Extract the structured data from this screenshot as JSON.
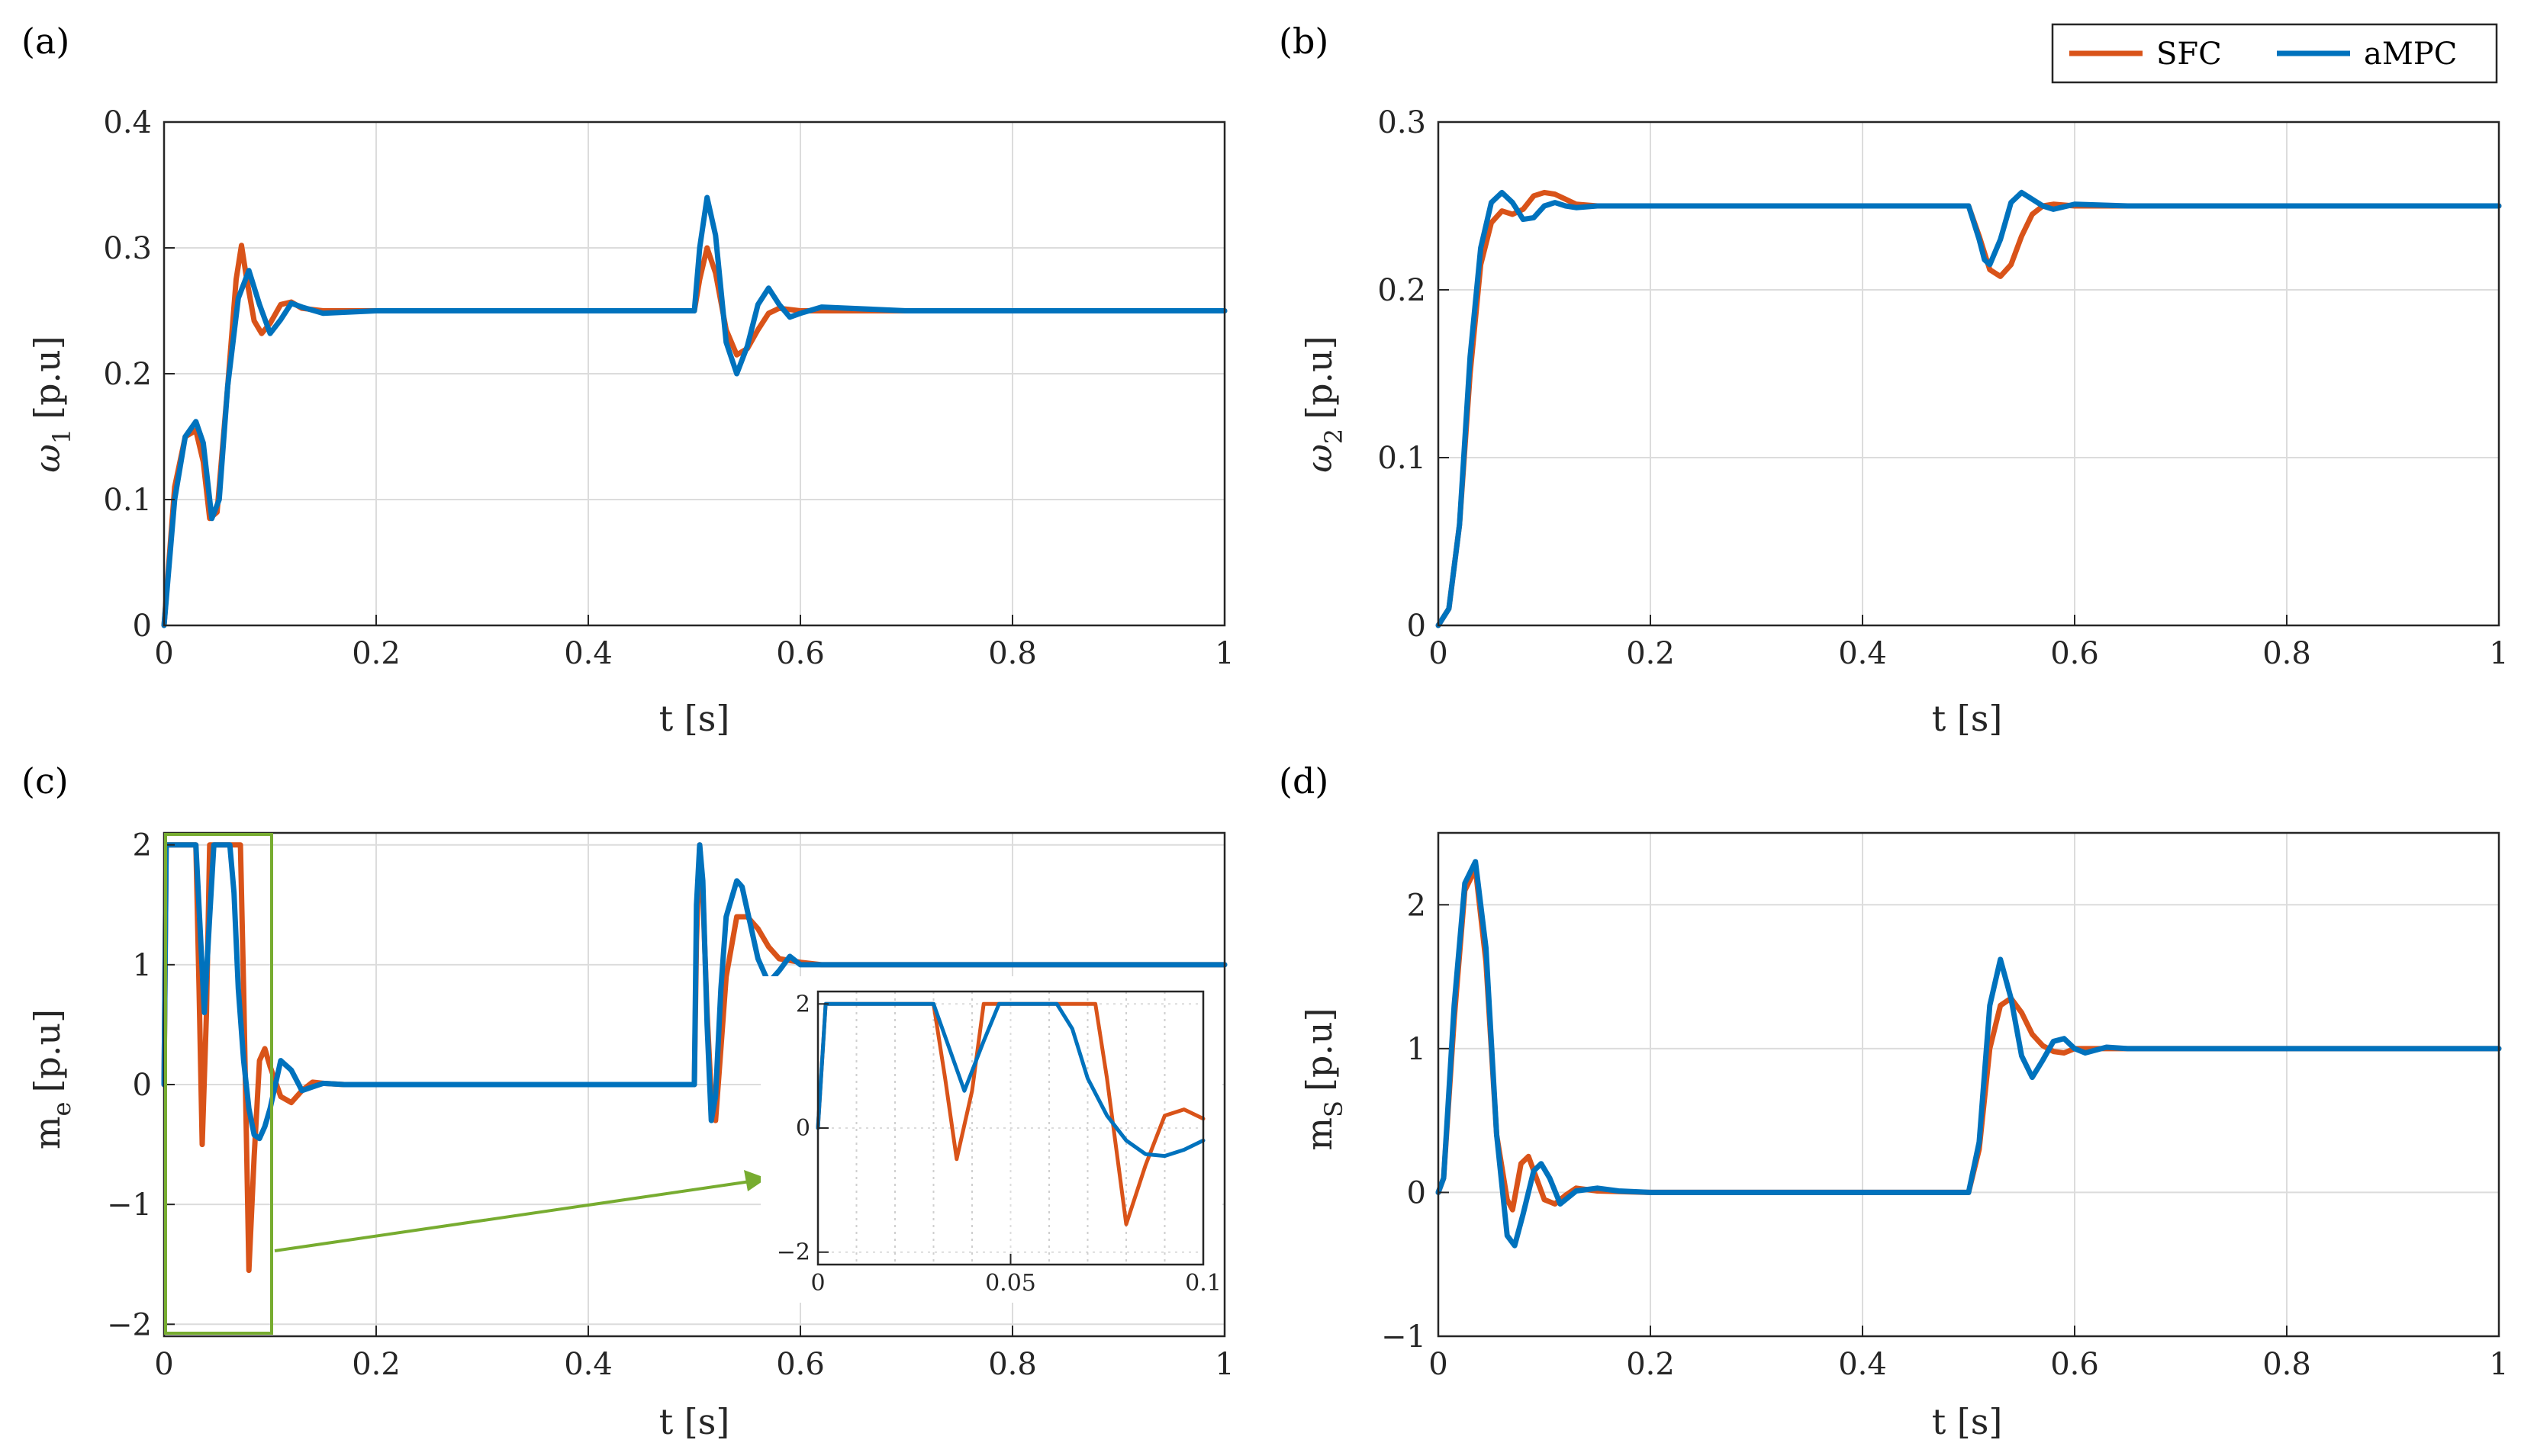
{
  "colors": {
    "sfc": "#D95319",
    "ampc": "#0072BD",
    "grid": "#dcdcdc",
    "axis": "#262626",
    "zoom": "#77AC30"
  },
  "legend": {
    "sfc_label": "SFC",
    "ampc_label": "aMPC"
  },
  "chart_data": [
    {
      "id": "a",
      "type": "line",
      "panel_label": "(a)",
      "ylabel_main": "ω",
      "ylabel_sub": "1",
      "ylabel_unit": "[p.u]",
      "xlabel": "t [s]",
      "xlim": [
        0,
        1
      ],
      "ylim": [
        0,
        0.4
      ],
      "xticks": [
        0,
        0.2,
        0.4,
        0.6,
        0.8,
        1
      ],
      "xtick_labels": [
        "0",
        "0.2",
        "0.4",
        "0.6",
        "0.8",
        "1"
      ],
      "yticks": [
        0,
        0.1,
        0.2,
        0.3,
        0.4
      ],
      "ytick_labels": [
        "0",
        "0.1",
        "0.2",
        "0.3",
        "0.4"
      ],
      "series": [
        {
          "name": "SFC",
          "x": [
            0,
            0.01,
            0.02,
            0.03,
            0.037,
            0.043,
            0.05,
            0.06,
            0.068,
            0.073,
            0.078,
            0.085,
            0.092,
            0.1,
            0.11,
            0.12,
            0.13,
            0.15,
            0.2,
            0.5,
            0.505,
            0.512,
            0.52,
            0.53,
            0.54,
            0.55,
            0.56,
            0.57,
            0.58,
            0.6,
            0.62,
            0.7,
            1.0
          ],
          "y": [
            0,
            0.11,
            0.15,
            0.155,
            0.13,
            0.085,
            0.09,
            0.19,
            0.275,
            0.302,
            0.275,
            0.242,
            0.232,
            0.24,
            0.255,
            0.257,
            0.252,
            0.25,
            0.25,
            0.25,
            0.275,
            0.3,
            0.28,
            0.235,
            0.215,
            0.22,
            0.235,
            0.248,
            0.252,
            0.25,
            0.25,
            0.25,
            0.25
          ]
        },
        {
          "name": "aMPC",
          "x": [
            0,
            0.01,
            0.02,
            0.03,
            0.037,
            0.045,
            0.052,
            0.06,
            0.07,
            0.08,
            0.09,
            0.1,
            0.11,
            0.12,
            0.13,
            0.15,
            0.2,
            0.5,
            0.505,
            0.512,
            0.52,
            0.53,
            0.54,
            0.55,
            0.56,
            0.57,
            0.58,
            0.59,
            0.6,
            0.62,
            0.7,
            1.0
          ],
          "y": [
            0,
            0.1,
            0.15,
            0.162,
            0.145,
            0.085,
            0.1,
            0.19,
            0.26,
            0.282,
            0.255,
            0.232,
            0.243,
            0.256,
            0.253,
            0.248,
            0.25,
            0.25,
            0.3,
            0.34,
            0.31,
            0.225,
            0.2,
            0.222,
            0.255,
            0.268,
            0.255,
            0.245,
            0.248,
            0.253,
            0.25,
            0.25
          ]
        }
      ]
    },
    {
      "id": "b",
      "type": "line",
      "panel_label": "(b)",
      "ylabel_main": "ω",
      "ylabel_sub": "2",
      "ylabel_unit": "[p.u]",
      "xlabel": "t [s]",
      "xlim": [
        0,
        1
      ],
      "ylim": [
        0,
        0.3
      ],
      "xticks": [
        0,
        0.2,
        0.4,
        0.6,
        0.8,
        1
      ],
      "xtick_labels": [
        "0",
        "0.2",
        "0.4",
        "0.6",
        "0.8",
        "1"
      ],
      "yticks": [
        0,
        0.1,
        0.2,
        0.3
      ],
      "ytick_labels": [
        "0",
        "0.1",
        "0.2",
        "0.3"
      ],
      "series": [
        {
          "name": "SFC",
          "x": [
            0,
            0.01,
            0.02,
            0.03,
            0.04,
            0.05,
            0.06,
            0.07,
            0.08,
            0.09,
            0.1,
            0.11,
            0.12,
            0.13,
            0.15,
            0.2,
            0.5,
            0.51,
            0.52,
            0.53,
            0.54,
            0.55,
            0.56,
            0.57,
            0.58,
            0.6,
            0.65,
            1.0
          ],
          "y": [
            0,
            0.01,
            0.06,
            0.15,
            0.215,
            0.24,
            0.247,
            0.245,
            0.248,
            0.256,
            0.258,
            0.257,
            0.254,
            0.251,
            0.25,
            0.25,
            0.25,
            0.232,
            0.212,
            0.208,
            0.215,
            0.232,
            0.245,
            0.25,
            0.251,
            0.25,
            0.25,
            0.25
          ]
        },
        {
          "name": "aMPC",
          "x": [
            0,
            0.01,
            0.02,
            0.03,
            0.04,
            0.05,
            0.06,
            0.07,
            0.08,
            0.09,
            0.1,
            0.11,
            0.12,
            0.13,
            0.15,
            0.2,
            0.5,
            0.51,
            0.515,
            0.52,
            0.53,
            0.54,
            0.55,
            0.56,
            0.57,
            0.58,
            0.6,
            0.65,
            1.0
          ],
          "y": [
            0,
            0.01,
            0.06,
            0.16,
            0.225,
            0.252,
            0.258,
            0.252,
            0.242,
            0.243,
            0.25,
            0.252,
            0.25,
            0.249,
            0.25,
            0.25,
            0.25,
            0.23,
            0.218,
            0.215,
            0.23,
            0.252,
            0.258,
            0.254,
            0.25,
            0.248,
            0.251,
            0.25,
            0.25
          ]
        }
      ]
    },
    {
      "id": "c",
      "type": "line",
      "panel_label": "(c)",
      "ylabel_main": "m",
      "ylabel_sub": "e",
      "ylabel_unit": "[p.u]",
      "xlabel": "t [s]",
      "xlim": [
        0,
        1
      ],
      "ylim": [
        -2.1,
        2.1
      ],
      "xticks": [
        0,
        0.2,
        0.4,
        0.6,
        0.8,
        1
      ],
      "xtick_labels": [
        "0",
        "0.2",
        "0.4",
        "0.6",
        "0.8",
        "1"
      ],
      "yticks": [
        -2,
        -1,
        0,
        1,
        2
      ],
      "ytick_labels": [
        "−2",
        "−1",
        "0",
        "1",
        "2"
      ],
      "series": [
        {
          "name": "SFC",
          "x": [
            0,
            0.002,
            0.03,
            0.033,
            0.036,
            0.04,
            0.043,
            0.055,
            0.06,
            0.063,
            0.072,
            0.075,
            0.08,
            0.085,
            0.09,
            0.095,
            0.1,
            0.11,
            0.12,
            0.13,
            0.14,
            0.15,
            0.17,
            0.2,
            0.5,
            0.502,
            0.505,
            0.508,
            0.512,
            0.516,
            0.52,
            0.525,
            0.53,
            0.54,
            0.55,
            0.56,
            0.57,
            0.58,
            0.6,
            0.62,
            0.65,
            0.7,
            1.0
          ],
          "y": [
            0,
            2,
            2,
            0.8,
            -0.5,
            0.6,
            2,
            2,
            2,
            2,
            2,
            0.8,
            -1.55,
            -0.6,
            0.2,
            0.3,
            0.15,
            -0.1,
            -0.15,
            -0.05,
            0.02,
            0.01,
            0,
            0,
            0,
            1.2,
            2,
            1.6,
            0.6,
            -0.1,
            -0.3,
            0.3,
            0.9,
            1.4,
            1.4,
            1.3,
            1.15,
            1.05,
            1.02,
            1,
            1,
            1,
            1
          ]
        },
        {
          "name": "aMPC",
          "x": [
            0,
            0.002,
            0.03,
            0.034,
            0.038,
            0.043,
            0.047,
            0.062,
            0.066,
            0.07,
            0.075,
            0.08,
            0.085,
            0.09,
            0.095,
            0.1,
            0.11,
            0.12,
            0.13,
            0.14,
            0.15,
            0.17,
            0.2,
            0.5,
            0.502,
            0.505,
            0.508,
            0.512,
            0.516,
            0.52,
            0.525,
            0.53,
            0.54,
            0.545,
            0.55,
            0.56,
            0.57,
            0.58,
            0.59,
            0.6,
            0.62,
            0.65,
            1.0
          ],
          "y": [
            0,
            2,
            2,
            1.3,
            0.6,
            1.4,
            2,
            2,
            1.6,
            0.8,
            0.2,
            -0.2,
            -0.42,
            -0.45,
            -0.35,
            -0.2,
            0.2,
            0.12,
            -0.05,
            -0.02,
            0.01,
            0,
            0,
            0,
            1.5,
            2,
            1.7,
            0.5,
            -0.3,
            -0.1,
            0.8,
            1.4,
            1.7,
            1.65,
            1.45,
            1.05,
            0.85,
            0.95,
            1.07,
            1.0,
            1.0,
            1,
            1
          ]
        }
      ],
      "inset": {
        "xlim": [
          0,
          0.1
        ],
        "ylim": [
          -2.2,
          2.2
        ],
        "xticks": [
          0,
          0.05,
          0.1
        ],
        "xtick_labels": [
          "0",
          "0.05",
          "0.1"
        ],
        "yticks": [
          -2,
          0,
          2
        ],
        "ytick_labels": [
          "−2",
          "0",
          "2"
        ]
      }
    },
    {
      "id": "d",
      "type": "line",
      "panel_label": "(d)",
      "ylabel_main": "m",
      "ylabel_sub": "S",
      "ylabel_unit": "[p.u]",
      "xlabel": "t [s]",
      "xlim": [
        0,
        1
      ],
      "ylim": [
        -1,
        2.5
      ],
      "xticks": [
        0,
        0.2,
        0.4,
        0.6,
        0.8,
        1
      ],
      "xtick_labels": [
        "0",
        "0.2",
        "0.4",
        "0.6",
        "0.8",
        "1"
      ],
      "yticks": [
        -1,
        0,
        1,
        2
      ],
      "ytick_labels": [
        "−1",
        "0",
        "1",
        "2"
      ],
      "series": [
        {
          "name": "SFC",
          "x": [
            0,
            0.005,
            0.015,
            0.025,
            0.035,
            0.045,
            0.055,
            0.065,
            0.07,
            0.078,
            0.085,
            0.09,
            0.1,
            0.11,
            0.12,
            0.13,
            0.15,
            0.2,
            0.5,
            0.51,
            0.52,
            0.53,
            0.54,
            0.55,
            0.56,
            0.57,
            0.58,
            0.59,
            0.6,
            0.62,
            0.65,
            0.7,
            1.0
          ],
          "y": [
            0,
            0.1,
            1.2,
            2.1,
            2.25,
            1.6,
            0.4,
            -0.05,
            -0.12,
            0.2,
            0.25,
            0.15,
            -0.05,
            -0.08,
            -0.02,
            0.03,
            0.01,
            0,
            0,
            0.3,
            1.0,
            1.3,
            1.35,
            1.25,
            1.1,
            1.02,
            0.98,
            0.97,
            1.0,
            1.0,
            1,
            1,
            1
          ]
        },
        {
          "name": "aMPC",
          "x": [
            0,
            0.005,
            0.015,
            0.025,
            0.035,
            0.045,
            0.055,
            0.065,
            0.072,
            0.08,
            0.09,
            0.097,
            0.105,
            0.115,
            0.13,
            0.15,
            0.17,
            0.2,
            0.5,
            0.51,
            0.52,
            0.53,
            0.54,
            0.55,
            0.56,
            0.57,
            0.58,
            0.59,
            0.6,
            0.61,
            0.63,
            0.65,
            1.0
          ],
          "y": [
            0,
            0.1,
            1.3,
            2.15,
            2.3,
            1.7,
            0.4,
            -0.3,
            -0.37,
            -0.15,
            0.15,
            0.2,
            0.1,
            -0.08,
            0.01,
            0.03,
            0.01,
            0,
            0,
            0.35,
            1.3,
            1.62,
            1.35,
            0.95,
            0.8,
            0.92,
            1.05,
            1.07,
            1.0,
            0.97,
            1.01,
            1,
            1
          ]
        }
      ]
    }
  ]
}
